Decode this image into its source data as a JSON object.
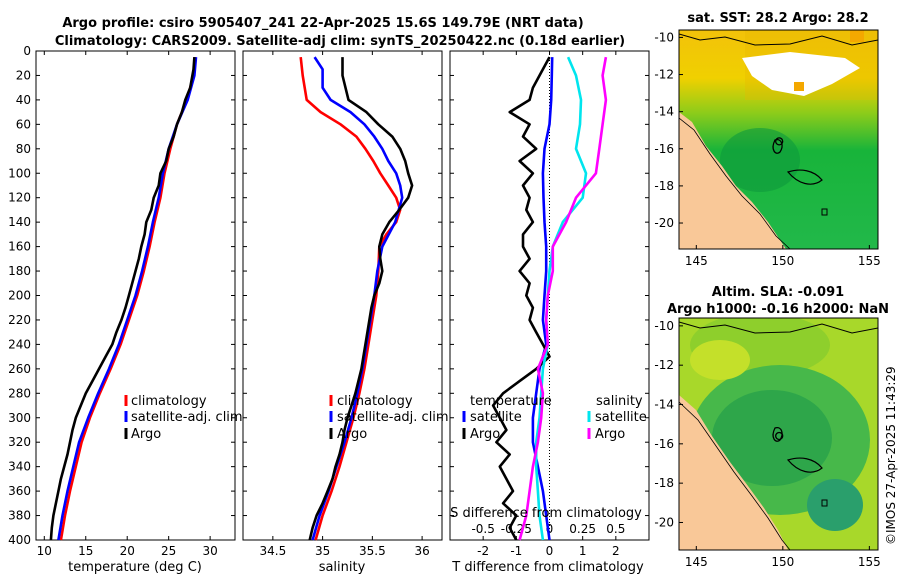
{
  "title": {
    "line1": "Argo profile: csiro 5905407_241 22-Apr-2025 15.6S 149.79E (NRT data)",
    "line2": "Climatology: CARS2009. Satellite-adj clim: synTS_20250422.nc (0.18d earlier)"
  },
  "copyright": "©IMOS 27-Apr-2025 11:43:29",
  "colors": {
    "climatology": "#ff0000",
    "satellite": "#0000ff",
    "argo": "#000000",
    "t_sat": "#00e5ee",
    "s_sat": "#00ffff",
    "s_argo": "#ff00ff",
    "zero": "#000000"
  },
  "legend": {
    "climatology": "climatology",
    "satellite_adj": "satellite-adj. clim",
    "argo": "Argo",
    "temperature": "temperature",
    "salinity": "salinity",
    "satellite": "satellite"
  },
  "chart_data": [
    {
      "type": "line",
      "name": "temperature",
      "xlabel": "temperature (deg C)",
      "ylabel": "",
      "xlim": [
        9,
        33
      ],
      "ylim": [
        0,
        400
      ],
      "xticks": [
        10,
        15,
        20,
        25,
        30
      ],
      "yticks": [
        0,
        20,
        40,
        60,
        80,
        100,
        120,
        140,
        160,
        180,
        200,
        220,
        240,
        260,
        280,
        300,
        320,
        340,
        360,
        380,
        400
      ],
      "series": [
        {
          "name": "climatology",
          "depth": [
            5,
            20,
            40,
            60,
            80,
            100,
            120,
            140,
            160,
            180,
            200,
            220,
            240,
            260,
            280,
            300,
            320,
            340,
            360,
            380,
            400
          ],
          "values": [
            28.2,
            28.0,
            27.2,
            26.0,
            25.2,
            24.5,
            24.0,
            23.3,
            22.7,
            22.0,
            21.2,
            20.2,
            19.2,
            18.0,
            16.7,
            15.5,
            14.5,
            13.8,
            13.1,
            12.5,
            12.0
          ]
        },
        {
          "name": "satellite",
          "depth": [
            5,
            20,
            40,
            60,
            80,
            100,
            120,
            140,
            160,
            180,
            200,
            220,
            240,
            260,
            280,
            300,
            320,
            340,
            360,
            380,
            400
          ],
          "values": [
            28.3,
            28.1,
            27.3,
            26.0,
            25.0,
            24.3,
            23.8,
            23.1,
            22.5,
            21.8,
            21.0,
            20.0,
            19.0,
            17.8,
            16.5,
            15.3,
            14.2,
            13.5,
            12.8,
            12.2,
            11.7
          ]
        },
        {
          "name": "argo",
          "depth": [
            5,
            15,
            30,
            40,
            50,
            60,
            70,
            80,
            90,
            100,
            110,
            120,
            130,
            140,
            150,
            160,
            170,
            180,
            190,
            200,
            210,
            220,
            230,
            240,
            250,
            260,
            270,
            280,
            290,
            300,
            310,
            320,
            330,
            340,
            350,
            360,
            370,
            380,
            390,
            400
          ],
          "values": [
            28.1,
            28.0,
            27.6,
            27.0,
            26.6,
            26.0,
            25.6,
            25.0,
            24.7,
            24.0,
            23.8,
            23.2,
            22.9,
            22.3,
            22.1,
            21.7,
            21.4,
            21.0,
            20.6,
            20.2,
            19.8,
            19.3,
            18.7,
            18.2,
            17.4,
            16.6,
            15.8,
            15.0,
            14.4,
            13.8,
            13.4,
            13.1,
            12.8,
            12.4,
            12.0,
            11.7,
            11.4,
            11.1,
            10.9,
            10.8
          ]
        }
      ]
    },
    {
      "type": "line",
      "name": "salinity",
      "xlabel": "salinity",
      "xlim": [
        34.2,
        36.2
      ],
      "ylim": [
        0,
        400
      ],
      "xticks": [
        34.5,
        35,
        35.5,
        36
      ],
      "xticklabels": [
        "34.5",
        "35",
        "35.5",
        "36"
      ],
      "series": [
        {
          "name": "climatology",
          "depth": [
            5,
            20,
            40,
            50,
            60,
            70,
            80,
            90,
            100,
            110,
            120,
            130,
            140,
            150,
            160,
            180,
            200,
            220,
            240,
            260,
            280,
            300,
            320,
            340,
            360,
            380,
            400
          ],
          "values": [
            34.78,
            34.8,
            34.84,
            34.98,
            35.18,
            35.34,
            35.43,
            35.51,
            35.58,
            35.66,
            35.74,
            35.78,
            35.74,
            35.64,
            35.57,
            35.56,
            35.54,
            35.5,
            35.46,
            35.42,
            35.37,
            35.31,
            35.24,
            35.17,
            35.09,
            35.0,
            34.93
          ]
        },
        {
          "name": "satellite",
          "depth": [
            5,
            15,
            30,
            40,
            50,
            60,
            70,
            80,
            90,
            100,
            110,
            120,
            140,
            160,
            180,
            200,
            220,
            240,
            260,
            280,
            300,
            320,
            340,
            360,
            380,
            400
          ],
          "values": [
            34.92,
            35.0,
            35.0,
            35.08,
            35.28,
            35.42,
            35.52,
            35.6,
            35.66,
            35.74,
            35.78,
            35.8,
            35.73,
            35.6,
            35.55,
            35.52,
            35.48,
            35.44,
            35.4,
            35.35,
            35.29,
            35.22,
            35.14,
            35.06,
            34.97,
            34.9
          ]
        },
        {
          "name": "argo",
          "depth": [
            5,
            20,
            40,
            50,
            60,
            70,
            80,
            90,
            100,
            110,
            120,
            130,
            140,
            150,
            160,
            170,
            180,
            190,
            200,
            210,
            220,
            230,
            240,
            250,
            260,
            270,
            280,
            290,
            300,
            310,
            320,
            330,
            340,
            350,
            360,
            370,
            380,
            390,
            400
          ],
          "values": [
            35.2,
            35.2,
            35.26,
            35.44,
            35.56,
            35.7,
            35.78,
            35.83,
            35.86,
            35.9,
            35.86,
            35.77,
            35.67,
            35.6,
            35.57,
            35.58,
            35.6,
            35.57,
            35.52,
            35.49,
            35.47,
            35.45,
            35.43,
            35.41,
            35.39,
            35.36,
            35.33,
            35.29,
            35.25,
            35.22,
            35.2,
            35.17,
            35.13,
            35.1,
            35.05,
            35.0,
            34.94,
            34.9,
            34.87
          ]
        }
      ]
    },
    {
      "type": "line",
      "name": "differences",
      "xlabel": "T difference from climatology",
      "xlabel2": "S difference from climatology",
      "xlim": [
        -3,
        3
      ],
      "ylim": [
        0,
        400
      ],
      "xticks": [
        -2,
        -1,
        0,
        1,
        2
      ],
      "xticks2": [
        "-0.5",
        "-0.25",
        "0",
        "0.25",
        "0.5"
      ],
      "note": "S differences plotted at 4x scale on the shared T axis",
      "series": [
        {
          "name": "T satellite",
          "depth": [
            5,
            20,
            40,
            60,
            80,
            100,
            120,
            140,
            160,
            180,
            200,
            220,
            240,
            260,
            280,
            300,
            320,
            340,
            360,
            380,
            400
          ],
          "values": [
            0.08,
            0.07,
            0.05,
            0.0,
            -0.15,
            -0.2,
            -0.18,
            -0.15,
            -0.1,
            -0.1,
            -0.15,
            -0.2,
            -0.1,
            -0.3,
            -0.4,
            -0.5,
            -0.5,
            -0.35,
            -0.2,
            -0.1,
            0.0
          ]
        },
        {
          "name": "T argo",
          "depth": [
            5,
            15,
            30,
            40,
            50,
            60,
            70,
            80,
            90,
            100,
            110,
            120,
            130,
            140,
            150,
            160,
            170,
            180,
            190,
            200,
            210,
            220,
            230,
            240,
            250,
            260,
            270,
            280,
            290,
            300,
            310,
            320,
            330,
            340,
            350,
            360,
            370,
            380,
            390,
            400
          ],
          "values": [
            0.0,
            -0.2,
            -0.5,
            -0.6,
            -1.2,
            -0.6,
            -0.8,
            -0.4,
            -0.9,
            -0.5,
            -0.8,
            -0.6,
            -0.7,
            -0.5,
            -0.8,
            -0.8,
            -0.6,
            -0.9,
            -0.6,
            -0.7,
            -0.5,
            -0.6,
            -0.4,
            -0.2,
            0.0,
            -0.4,
            -0.9,
            -1.4,
            -1.7,
            -1.5,
            -1.3,
            -1.6,
            -1.2,
            -1.5,
            -1.3,
            -1.1,
            -1.4,
            -1.0,
            -1.2,
            -1.0
          ]
        },
        {
          "name": "S satellite",
          "depth": [
            5,
            20,
            40,
            60,
            80,
            100,
            120,
            140,
            160,
            180,
            200,
            220,
            240,
            260,
            280,
            300,
            320,
            340,
            360,
            380,
            400
          ],
          "values": [
            0.56,
            0.8,
            0.95,
            0.92,
            0.8,
            1.1,
            1.0,
            0.4,
            0.1,
            0.0,
            -0.05,
            -0.1,
            -0.05,
            -0.2,
            -0.25,
            -0.3,
            -0.4,
            -0.4,
            -0.35,
            -0.3,
            -0.2
          ]
        },
        {
          "name": "S argo",
          "depth": [
            5,
            20,
            40,
            60,
            80,
            100,
            120,
            140,
            160,
            180,
            200,
            220,
            240,
            260,
            280,
            300,
            320,
            340,
            360,
            380,
            400
          ],
          "values": [
            1.7,
            1.6,
            1.7,
            1.6,
            1.5,
            1.4,
            0.8,
            0.5,
            0.1,
            0.1,
            -0.05,
            -0.1,
            -0.05,
            -0.35,
            -0.2,
            -0.25,
            -0.35,
            -0.5,
            -0.6,
            -0.7,
            -0.9
          ]
        }
      ]
    },
    {
      "type": "heatmap",
      "name": "sst-map",
      "title": "sat. SST: 28.2 Argo: 28.2",
      "xlim": [
        144,
        155.5
      ],
      "ylim": [
        -21.4,
        -9.6
      ],
      "xticks": [
        145,
        150,
        155
      ],
      "yticks": [
        -10,
        -12,
        -14,
        -16,
        -18,
        -20
      ],
      "marker": {
        "lon": 149.79,
        "lat": -15.6
      }
    },
    {
      "type": "heatmap",
      "name": "sla-map",
      "title1": "Altim. SLA: -0.091",
      "title2": "Argo h1000: -0.16 h2000: NaN",
      "xlim": [
        144,
        155.5
      ],
      "ylim": [
        -21.4,
        -9.6
      ],
      "xticks": [
        145,
        150,
        155
      ],
      "yticks": [
        -10,
        -12,
        -14,
        -16,
        -18,
        -20
      ],
      "marker": {
        "lon": 149.79,
        "lat": -15.6
      }
    }
  ]
}
